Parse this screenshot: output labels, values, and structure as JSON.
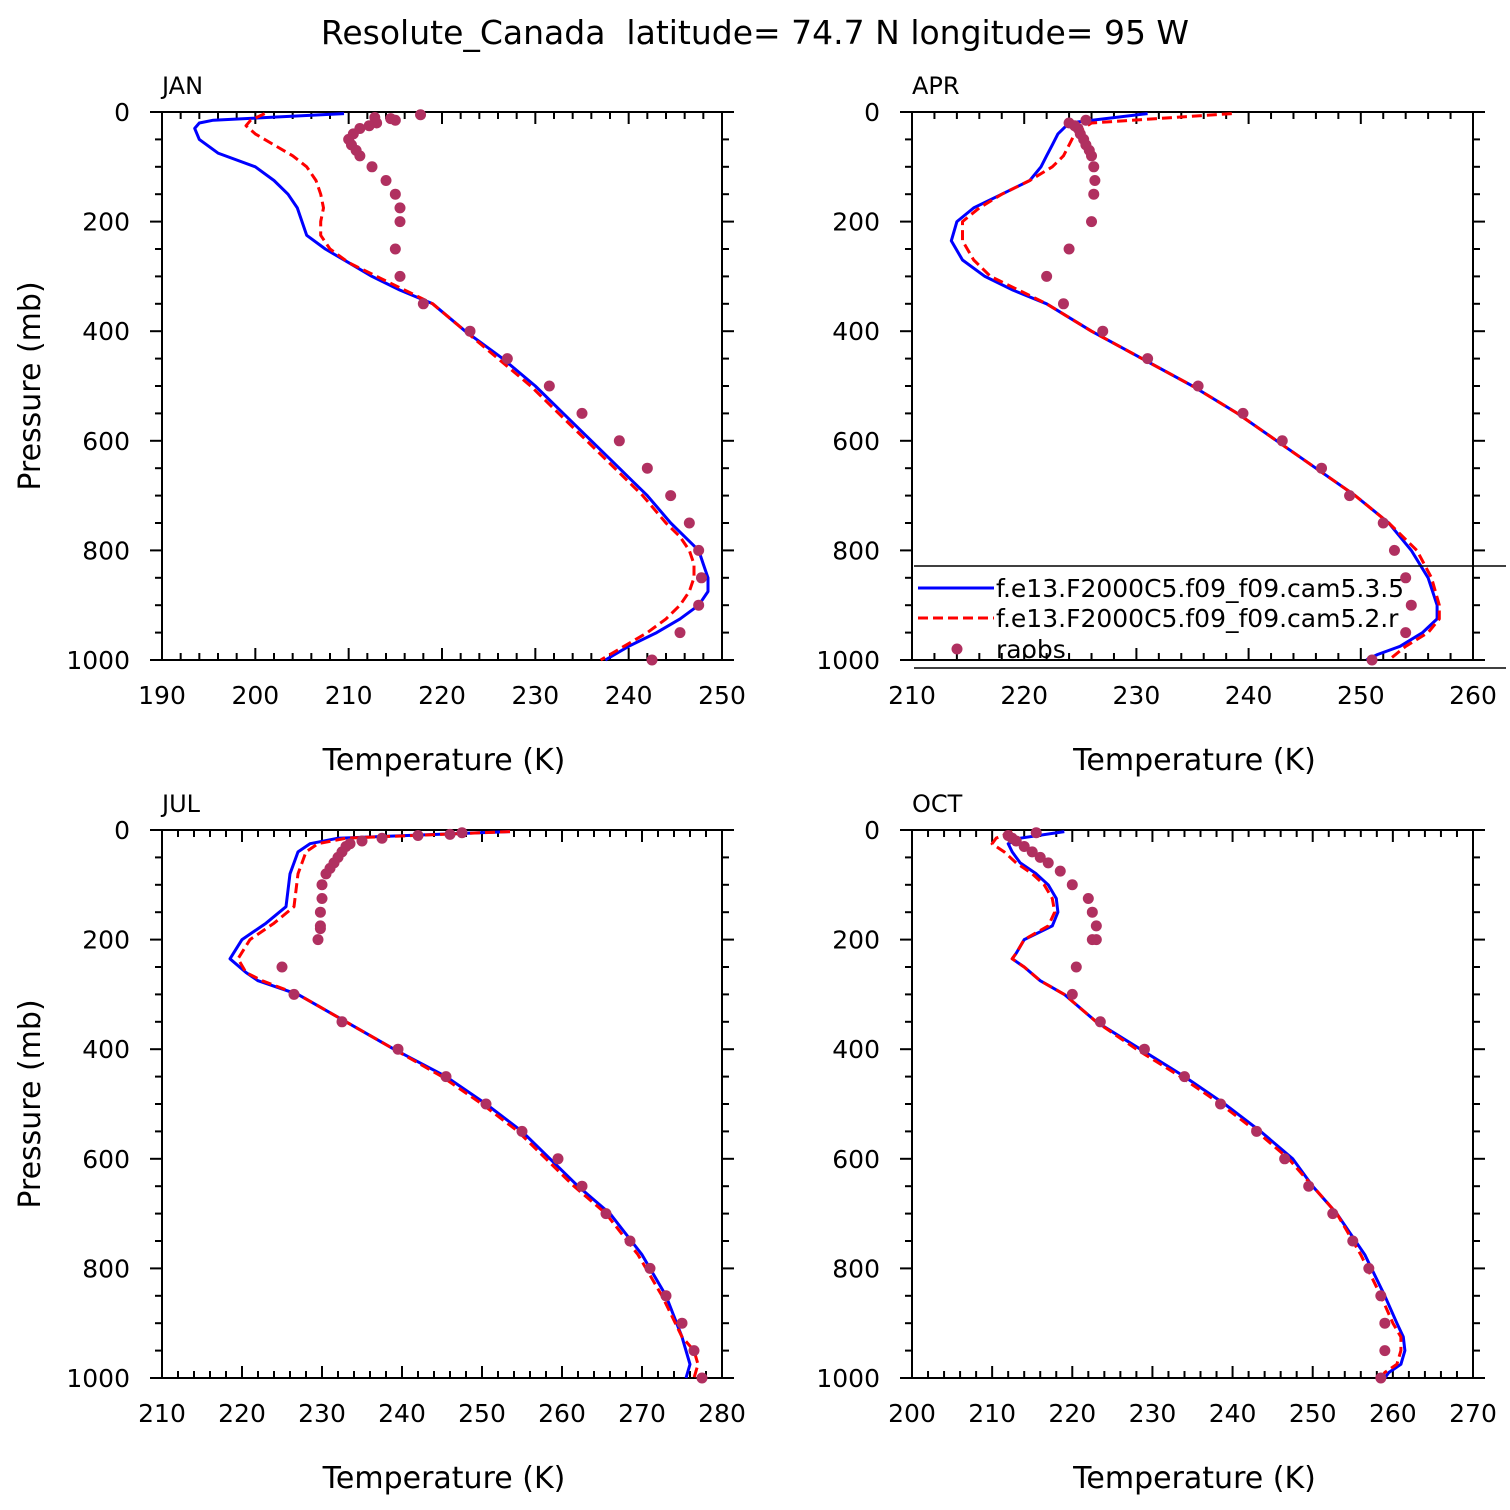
{
  "figure": {
    "title": "Resolute_Canada  latitude= 74.7 N longitude= 95 W"
  },
  "colors": {
    "model1": "#0000ff",
    "model2": "#ff0000",
    "obs": "#b03060",
    "axis": "#000000"
  },
  "legend": {
    "entries": [
      "f.e13.F2000C5.f09_f09.cam5.3.5",
      "f.e13.F2000C5.f09_f09.cam5.2.r",
      "raobs"
    ]
  },
  "chart_data": [
    {
      "type": "line",
      "panel": "JAN",
      "xlabel": "Temperature (K)",
      "ylabel": "Pressure (mb)",
      "xlim": [
        190,
        250
      ],
      "ylim": [
        1000,
        0
      ],
      "xticks": [
        190,
        200,
        210,
        220,
        230,
        240,
        250
      ],
      "yticks": [
        0,
        200,
        400,
        600,
        800,
        1000
      ],
      "series": [
        {
          "key": "model1",
          "style": "solid",
          "x": [
            209.5,
            195.5,
            194.0,
            193.5,
            194.0,
            196.0,
            200.0,
            202.0,
            203.5,
            204.5,
            205.0,
            205.5,
            207.5,
            210.0,
            212.5,
            215.5,
            219.0,
            222.5,
            226.5,
            230.0,
            233.0,
            236.0,
            239.0,
            242.0,
            244.5,
            246.0,
            247.5,
            248.0,
            248.5,
            248.5,
            247.5,
            245.5,
            243.0,
            240.0,
            237.5
          ],
          "y": [
            3,
            15,
            20,
            30,
            50,
            75,
            100,
            125,
            150,
            175,
            200,
            225,
            250,
            275,
            300,
            325,
            350,
            400,
            450,
            500,
            550,
            600,
            650,
            700,
            750,
            775,
            800,
            825,
            850,
            875,
            900,
            925,
            950,
            975,
            1000
          ]
        },
        {
          "key": "model2",
          "style": "dashed",
          "x": [
            201.0,
            199.5,
            199.0,
            200.0,
            202.0,
            204.0,
            205.5,
            206.5,
            207.0,
            207.3,
            207.0,
            207.0,
            208.0,
            210.0,
            213.0,
            216.0,
            219.0,
            222.5,
            226.0,
            229.5,
            232.5,
            235.5,
            238.5,
            241.5,
            244.0,
            245.5,
            246.5,
            247.0,
            247.0,
            246.5,
            245.5,
            244.0,
            242.0,
            239.5,
            237.0
          ],
          "y": [
            3,
            15,
            25,
            40,
            60,
            80,
            100,
            125,
            150,
            175,
            200,
            225,
            250,
            275,
            300,
            325,
            350,
            400,
            450,
            500,
            550,
            600,
            650,
            700,
            750,
            775,
            800,
            825,
            850,
            875,
            900,
            925,
            950,
            975,
            1000
          ]
        },
        {
          "key": "obs",
          "style": "markers",
          "x": [
            217.7,
            212.8,
            214.5,
            215.0,
            213.0,
            212.2,
            211.2,
            210.5,
            210.0,
            210.3,
            210.8,
            211.2,
            212.5,
            214.0,
            215.0,
            215.5,
            215.5,
            215.0,
            215.5,
            218.0,
            223.0,
            227.0,
            231.5,
            235.0,
            239.0,
            242.0,
            244.5,
            246.5,
            247.5,
            247.8,
            247.5,
            245.5,
            242.5
          ],
          "y": [
            5,
            10,
            12,
            15,
            20,
            25,
            30,
            40,
            50,
            60,
            70,
            80,
            100,
            125,
            150,
            175,
            200,
            250,
            300,
            350,
            400,
            450,
            500,
            550,
            600,
            650,
            700,
            750,
            800,
            850,
            900,
            950,
            1000
          ]
        }
      ]
    },
    {
      "type": "line",
      "panel": "APR",
      "xlabel": "Temperature (K)",
      "ylabel": "",
      "xlim": [
        210,
        260
      ],
      "ylim": [
        1000,
        0
      ],
      "xticks": [
        210,
        220,
        230,
        240,
        250,
        260
      ],
      "yticks": [
        0,
        200,
        400,
        600,
        800,
        1000
      ],
      "series": [
        {
          "key": "model1",
          "style": "solid",
          "x": [
            231.0,
            224.0,
            223.0,
            222.5,
            222.0,
            221.5,
            220.5,
            218.0,
            215.5,
            214.0,
            213.5,
            214.5,
            216.5,
            219.0,
            222.0,
            226.0,
            230.5,
            235.0,
            239.0,
            242.5,
            246.0,
            249.5,
            252.5,
            254.5,
            256.0,
            256.8,
            256.8,
            255.5,
            253.5,
            251.5,
            250.5
          ],
          "y": [
            3,
            20,
            40,
            60,
            80,
            100,
            125,
            150,
            175,
            200,
            235,
            270,
            300,
            325,
            350,
            400,
            450,
            500,
            550,
            600,
            650,
            700,
            750,
            800,
            850,
            900,
            925,
            950,
            975,
            990,
            1000
          ]
        },
        {
          "key": "model2",
          "style": "dashed",
          "x": [
            238.5,
            226.0,
            224.5,
            224.0,
            223.5,
            222.5,
            220.5,
            218.0,
            216.0,
            214.5,
            214.5,
            215.5,
            217.0,
            219.5,
            222.0,
            226.0,
            230.5,
            235.0,
            239.0,
            242.5,
            246.0,
            249.5,
            252.5,
            255.0,
            256.3,
            257.0,
            257.0,
            256.0,
            254.0,
            252.5
          ],
          "y": [
            3,
            20,
            40,
            60,
            80,
            100,
            125,
            150,
            175,
            200,
            235,
            270,
            300,
            325,
            350,
            400,
            450,
            500,
            550,
            600,
            650,
            700,
            750,
            800,
            850,
            900,
            925,
            950,
            975,
            1000
          ]
        },
        {
          "key": "obs",
          "style": "markers",
          "x": [
            225.5,
            224.0,
            224.5,
            224.8,
            225.0,
            225.3,
            225.5,
            225.8,
            226.0,
            226.2,
            226.3,
            226.2,
            226.0,
            224.0,
            222.0,
            223.5,
            227.0,
            231.0,
            235.5,
            239.5,
            243.0,
            246.5,
            249.0,
            252.0,
            253.0,
            254.0,
            254.5,
            254.0,
            251.0
          ],
          "y": [
            15,
            20,
            25,
            30,
            40,
            50,
            60,
            70,
            80,
            100,
            125,
            150,
            200,
            250,
            300,
            350,
            400,
            450,
            500,
            550,
            600,
            650,
            700,
            750,
            800,
            850,
            900,
            950,
            1000
          ]
        }
      ]
    },
    {
      "type": "line",
      "panel": "JUL",
      "xlabel": "Temperature (K)",
      "ylabel": "Pressure (mb)",
      "xlim": [
        210,
        280
      ],
      "ylim": [
        1000,
        0
      ],
      "xticks": [
        210,
        220,
        230,
        240,
        250,
        260,
        270,
        280
      ],
      "yticks": [
        0,
        200,
        400,
        600,
        800,
        1000
      ],
      "series": [
        {
          "key": "model1",
          "style": "solid",
          "x": [
            253.5,
            232.0,
            228.5,
            227.0,
            226.5,
            226.0,
            225.5,
            223.0,
            220.0,
            218.5,
            220.5,
            222.0,
            227.0,
            233.0,
            239.0,
            245.5,
            250.5,
            255.0,
            258.5,
            262.0,
            266.0,
            270.0,
            273.0,
            275.0,
            276.0,
            275.5
          ],
          "y": [
            3,
            15,
            25,
            40,
            60,
            80,
            140,
            170,
            200,
            235,
            260,
            275,
            300,
            350,
            400,
            450,
            500,
            550,
            600,
            650,
            700,
            775,
            850,
            925,
            975,
            1000
          ]
        },
        {
          "key": "model2",
          "style": "dashed",
          "x": [
            253.5,
            233.0,
            229.5,
            228.0,
            227.5,
            227.0,
            226.5,
            224.0,
            221.0,
            219.5,
            220.5,
            222.5,
            227.0,
            233.0,
            239.0,
            245.0,
            250.0,
            254.5,
            258.0,
            261.5,
            265.5,
            269.5,
            272.5,
            275.0,
            276.5,
            277.0,
            276.5
          ],
          "y": [
            3,
            15,
            25,
            40,
            60,
            80,
            140,
            170,
            200,
            235,
            260,
            275,
            300,
            350,
            400,
            450,
            500,
            550,
            600,
            650,
            700,
            775,
            850,
            925,
            950,
            975,
            1000
          ]
        },
        {
          "key": "obs",
          "style": "markers",
          "x": [
            247.5,
            246.0,
            242.0,
            237.5,
            235.0,
            233.5,
            233.0,
            232.5,
            232.0,
            231.5,
            231.0,
            230.5,
            230.0,
            230.0,
            229.8,
            229.8,
            229.8,
            229.5,
            225.0,
            226.5,
            232.5,
            239.5,
            245.5,
            250.5,
            255.0,
            259.5,
            262.5,
            265.5,
            268.5,
            271.0,
            273.0,
            275.0,
            276.5,
            277.5
          ],
          "y": [
            5,
            8,
            10,
            15,
            20,
            25,
            30,
            40,
            50,
            60,
            70,
            80,
            100,
            125,
            150,
            175,
            180,
            200,
            250,
            300,
            350,
            400,
            450,
            500,
            550,
            600,
            650,
            700,
            750,
            800,
            850,
            900,
            950,
            1000
          ]
        }
      ]
    },
    {
      "type": "line",
      "panel": "OCT",
      "xlabel": "Temperature (K)",
      "ylabel": "",
      "xlim": [
        200,
        270
      ],
      "ylim": [
        1000,
        0
      ],
      "xticks": [
        200,
        210,
        220,
        230,
        240,
        250,
        260,
        270
      ],
      "yticks": [
        0,
        200,
        400,
        600,
        800,
        1000
      ],
      "series": [
        {
          "key": "model1",
          "style": "solid",
          "x": [
            219.0,
            213.5,
            212.0,
            212.5,
            213.5,
            215.5,
            217.0,
            218.0,
            218.2,
            217.5,
            214.0,
            213.0,
            212.5,
            214.0,
            216.0,
            219.0,
            223.0,
            228.5,
            234.0,
            239.0,
            243.5,
            247.5,
            250.0,
            253.0,
            256.5,
            259.0,
            260.5,
            261.3,
            261.5,
            261.0,
            259.5,
            259.0
          ],
          "y": [
            3,
            15,
            25,
            40,
            60,
            80,
            100,
            125,
            150,
            175,
            200,
            225,
            235,
            250,
            275,
            300,
            350,
            400,
            450,
            500,
            550,
            600,
            650,
            700,
            775,
            850,
            900,
            925,
            950,
            975,
            990,
            1000
          ]
        },
        {
          "key": "model2",
          "style": "dashed",
          "x": [
            212.5,
            210.5,
            210.0,
            211.5,
            213.0,
            215.0,
            216.5,
            217.5,
            217.8,
            217.0,
            214.0,
            213.0,
            212.5,
            214.0,
            216.0,
            219.0,
            223.0,
            228.0,
            233.5,
            238.5,
            243.0,
            247.0,
            250.0,
            253.0,
            256.0,
            258.5,
            260.0,
            261.0,
            261.0,
            260.5,
            259.0,
            258.5
          ],
          "y": [
            3,
            15,
            25,
            40,
            60,
            80,
            100,
            125,
            150,
            175,
            200,
            225,
            235,
            250,
            275,
            300,
            350,
            400,
            450,
            500,
            550,
            600,
            650,
            700,
            775,
            850,
            900,
            925,
            950,
            975,
            990,
            1000
          ]
        },
        {
          "key": "obs",
          "style": "markers",
          "x": [
            215.5,
            212.0,
            212.5,
            213.0,
            214.0,
            215.0,
            216.0,
            217.0,
            218.5,
            220.0,
            222.0,
            222.5,
            223.0,
            223.0,
            222.5,
            220.5,
            220.0,
            223.5,
            229.0,
            234.0,
            238.5,
            243.0,
            246.5,
            249.5,
            252.5,
            255.0,
            257.0,
            258.5,
            259.0,
            259.0,
            258.5
          ],
          "y": [
            5,
            10,
            15,
            20,
            30,
            40,
            50,
            60,
            75,
            100,
            125,
            150,
            175,
            200,
            200,
            250,
            300,
            350,
            400,
            450,
            500,
            550,
            600,
            650,
            700,
            750,
            800,
            850,
            900,
            950,
            1000
          ]
        }
      ]
    }
  ]
}
